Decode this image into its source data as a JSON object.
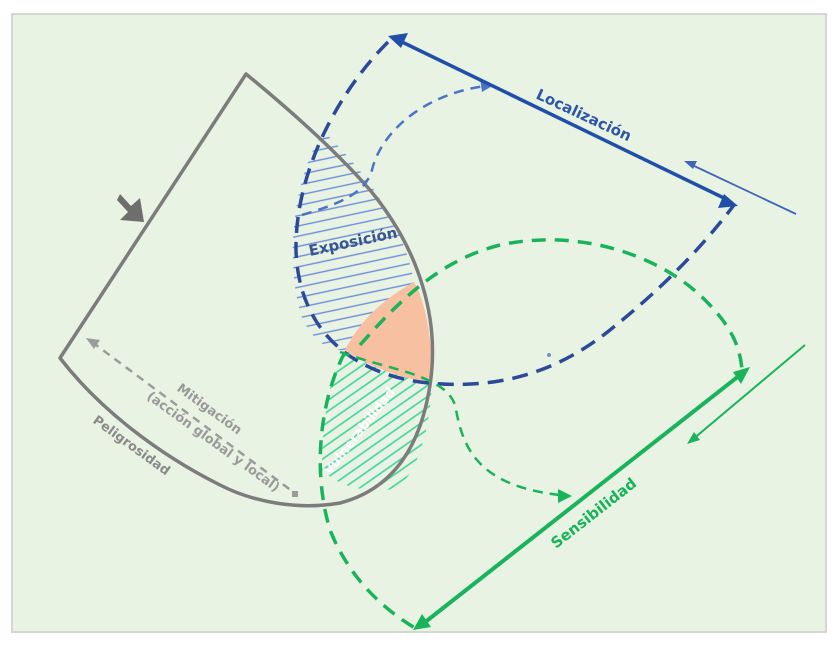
{
  "labels": {
    "localizacion": "Localización",
    "exposicion": "Exposición",
    "vulnerabilidad": "Vulnerabilidad",
    "sensibilidad": "Sensibilidad",
    "mitigacion_1": "Mitigación",
    "mitigacion_2": "(acción global y local)",
    "peligrosidad": "Peligrosidad"
  },
  "colors": {
    "background": "#e9f3e3",
    "border": "#d4d6d4",
    "hazard_gray": "#7c7c7c",
    "exposure_blue": "#2e56a6",
    "localization_blue": "#1f4fa8",
    "sensitivity_green": "#19b35a",
    "vulnerability_green": "#27c97f",
    "risk_orange": "#f7c0a0"
  }
}
